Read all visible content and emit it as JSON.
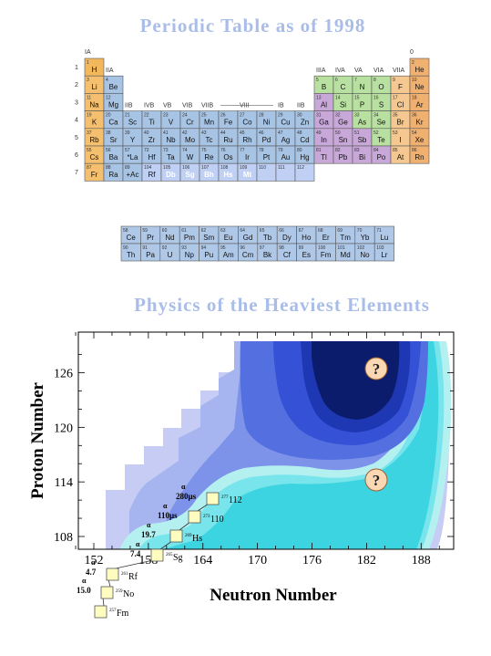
{
  "page": {
    "title_top": "Periodic Table as of 1998",
    "title_bottom": "Physics of the Heaviest Elements"
  },
  "periodic_table": {
    "group_labels": [
      "IA",
      "IIA",
      "IIB",
      "IVB",
      "VB",
      "VIB",
      "VIIB",
      "VIII",
      "IB",
      "IIB",
      "IIIA",
      "IVA",
      "VA",
      "VIA",
      "VIIA",
      "0"
    ],
    "period_labels": [
      "1",
      "2",
      "3",
      "4",
      "5",
      "6",
      "7"
    ],
    "elements": [
      {
        "symbol": "H",
        "number": "1"
      },
      {
        "symbol": "He",
        "number": "2"
      },
      {
        "symbol": "Li",
        "number": "3"
      },
      {
        "symbol": "Be",
        "number": "4"
      },
      {
        "symbol": "B",
        "number": "5"
      },
      {
        "symbol": "C",
        "number": "6"
      },
      {
        "symbol": "N",
        "number": "7"
      },
      {
        "symbol": "O",
        "number": "8"
      },
      {
        "symbol": "F",
        "number": "9"
      },
      {
        "symbol": "Ne",
        "number": "10"
      },
      {
        "symbol": "Na",
        "number": "11"
      },
      {
        "symbol": "Mg",
        "number": "12"
      },
      {
        "symbol": "Al",
        "number": "13"
      },
      {
        "symbol": "Si",
        "number": "14"
      },
      {
        "symbol": "P",
        "number": "15"
      },
      {
        "symbol": "S",
        "number": "16"
      },
      {
        "symbol": "Cl",
        "number": "17"
      },
      {
        "symbol": "Ar",
        "number": "18"
      },
      {
        "symbol": "K",
        "number": "19"
      },
      {
        "symbol": "Ca",
        "number": "20"
      },
      {
        "symbol": "Sc",
        "number": "21"
      },
      {
        "symbol": "Ti",
        "number": "22"
      },
      {
        "symbol": "V",
        "number": "23"
      },
      {
        "symbol": "Cr",
        "number": "24"
      },
      {
        "symbol": "Mn",
        "number": "25"
      },
      {
        "symbol": "Fe",
        "number": "26"
      },
      {
        "symbol": "Co",
        "number": "27"
      },
      {
        "symbol": "Ni",
        "number": "28"
      },
      {
        "symbol": "Cu",
        "number": "29"
      },
      {
        "symbol": "Zn",
        "number": "30"
      },
      {
        "symbol": "Ga",
        "number": "31"
      },
      {
        "symbol": "Ge",
        "number": "32"
      },
      {
        "symbol": "As",
        "number": "33"
      },
      {
        "symbol": "Se",
        "number": "34"
      },
      {
        "symbol": "Br",
        "number": "35"
      },
      {
        "symbol": "Kr",
        "number": "36"
      },
      {
        "symbol": "Rb",
        "number": "37"
      },
      {
        "symbol": "Sr",
        "number": "38"
      },
      {
        "symbol": "Y",
        "number": "39"
      },
      {
        "symbol": "Zr",
        "number": "40"
      },
      {
        "symbol": "Nb",
        "number": "41"
      },
      {
        "symbol": "Mo",
        "number": "42"
      },
      {
        "symbol": "Tc",
        "number": "43"
      },
      {
        "symbol": "Ru",
        "number": "44"
      },
      {
        "symbol": "Rh",
        "number": "45"
      },
      {
        "symbol": "Pd",
        "number": "46"
      },
      {
        "symbol": "Ag",
        "number": "47"
      },
      {
        "symbol": "Cd",
        "number": "48"
      },
      {
        "symbol": "In",
        "number": "49"
      },
      {
        "symbol": "Sn",
        "number": "50"
      },
      {
        "symbol": "Sb",
        "number": "51"
      },
      {
        "symbol": "Te",
        "number": "52"
      },
      {
        "symbol": "I",
        "number": "53"
      },
      {
        "symbol": "Xe",
        "number": "54"
      },
      {
        "symbol": "Cs",
        "number": "55"
      },
      {
        "symbol": "Ba",
        "number": "56"
      },
      {
        "symbol": "*La",
        "number": "57"
      },
      {
        "symbol": "Hf",
        "number": "72"
      },
      {
        "symbol": "Ta",
        "number": "73"
      },
      {
        "symbol": "W",
        "number": "74"
      },
      {
        "symbol": "Re",
        "number": "75"
      },
      {
        "symbol": "Os",
        "number": "76"
      },
      {
        "symbol": "Ir",
        "number": "77"
      },
      {
        "symbol": "Pt",
        "number": "78"
      },
      {
        "symbol": "Au",
        "number": "79"
      },
      {
        "symbol": "Hg",
        "number": "80"
      },
      {
        "symbol": "Tl",
        "number": "81"
      },
      {
        "symbol": "Pb",
        "number": "82"
      },
      {
        "symbol": "Bi",
        "number": "83"
      },
      {
        "symbol": "Po",
        "number": "84"
      },
      {
        "symbol": "At",
        "number": "85"
      },
      {
        "symbol": "Rn",
        "number": "86"
      },
      {
        "symbol": "Fr",
        "number": "87"
      },
      {
        "symbol": "Ra",
        "number": "88"
      },
      {
        "symbol": "+Ac",
        "number": "89"
      },
      {
        "symbol": "Rf",
        "number": "104"
      },
      {
        "symbol": "Db",
        "number": "105"
      },
      {
        "symbol": "Sg",
        "number": "106"
      },
      {
        "symbol": "Bh",
        "number": "107"
      },
      {
        "symbol": "Hs",
        "number": "108"
      },
      {
        "symbol": "Mt",
        "number": "109"
      },
      {
        "symbol": "",
        "number": "110"
      },
      {
        "symbol": "",
        "number": "111"
      },
      {
        "symbol": "",
        "number": "112"
      }
    ],
    "lanthanides": [
      {
        "symbol": "Ce",
        "number": "58"
      },
      {
        "symbol": "Pr",
        "number": "59"
      },
      {
        "symbol": "Nd",
        "number": "60"
      },
      {
        "symbol": "Pm",
        "number": "61"
      },
      {
        "symbol": "Sm",
        "number": "62"
      },
      {
        "symbol": "Eu",
        "number": "63"
      },
      {
        "symbol": "Gd",
        "number": "64"
      },
      {
        "symbol": "Tb",
        "number": "65"
      },
      {
        "symbol": "Dy",
        "number": "66"
      },
      {
        "symbol": "Ho",
        "number": "67"
      },
      {
        "symbol": "Er",
        "number": "68"
      },
      {
        "symbol": "Tm",
        "number": "69"
      },
      {
        "symbol": "Yb",
        "number": "70"
      },
      {
        "symbol": "Lu",
        "number": "71"
      }
    ],
    "actinides": [
      {
        "symbol": "Th",
        "number": "90"
      },
      {
        "symbol": "Pa",
        "number": "91"
      },
      {
        "symbol": "U",
        "number": "92"
      },
      {
        "symbol": "Np",
        "number": "93"
      },
      {
        "symbol": "Pu",
        "number": "94"
      },
      {
        "symbol": "Am",
        "number": "95"
      },
      {
        "symbol": "Cm",
        "number": "96"
      },
      {
        "symbol": "Bk",
        "number": "97"
      },
      {
        "symbol": "Cf",
        "number": "98"
      },
      {
        "symbol": "Es",
        "number": "99"
      },
      {
        "symbol": "Fm",
        "number": "100"
      },
      {
        "symbol": "Md",
        "number": "101"
      },
      {
        "symbol": "No",
        "number": "102"
      },
      {
        "symbol": "Lr",
        "number": "103"
      }
    ],
    "colors": {
      "hydrogen": "#f4b85c",
      "alkali": "#f4c070",
      "alkaline_earth": "#b0c8e8",
      "transition": "#a8c4e4",
      "pblock_metal": "#c8a8d8",
      "nonmetal": "#b8e0a0",
      "halogen": "#f4c890",
      "noble": "#f0b070",
      "superheavy": "#c0d0f4",
      "lanthanide": "#b0c8e8"
    }
  },
  "chart": {
    "xlabel": "Neutron Number",
    "ylabel": "Proton Number",
    "x_ticks": [
      "152",
      "158",
      "164",
      "170",
      "176",
      "182",
      "188"
    ],
    "y_ticks": [
      "108",
      "114",
      "120",
      "126"
    ],
    "colors": {
      "c1": "#c6ccf4",
      "c2": "#a6b4f0",
      "c3": "#7d93ea",
      "c4": "#5470e0",
      "c5": "#3551d6",
      "c6": "#1e38b4",
      "c7": "#0c1c6c",
      "cyan1": "#b4f0f0",
      "cyan2": "#78e4ec",
      "cyan3": "#3cd4e0",
      "marker": "#fffcc0",
      "question": "#fbd8b4"
    },
    "questions": [
      "?",
      "?"
    ],
    "nuclei": [
      {
        "label": "257Fm",
        "mass": "257",
        "sym": "Fm",
        "halflife": ""
      },
      {
        "label": "No",
        "mass": "259",
        "sym": "No",
        "alpha": "α",
        "halflife": "15.0"
      },
      {
        "label": "Rf",
        "mass": "261",
        "sym": "Rf",
        "alpha": "α",
        "halflife": "4.7"
      },
      {
        "label": "Sg",
        "mass": "265",
        "sym": "Sg",
        "alpha": "α",
        "halflife": "7.4"
      },
      {
        "label": "Hs",
        "mass": "269",
        "sym": "Hs",
        "alpha": "α",
        "halflife": "19.7"
      },
      {
        "label": "110",
        "mass": "273",
        "sym": "110",
        "alpha": "α",
        "halflife": "110μs"
      },
      {
        "label": "112",
        "mass": "277",
        "sym": "112",
        "alpha": "α",
        "halflife": "280μs"
      }
    ]
  }
}
